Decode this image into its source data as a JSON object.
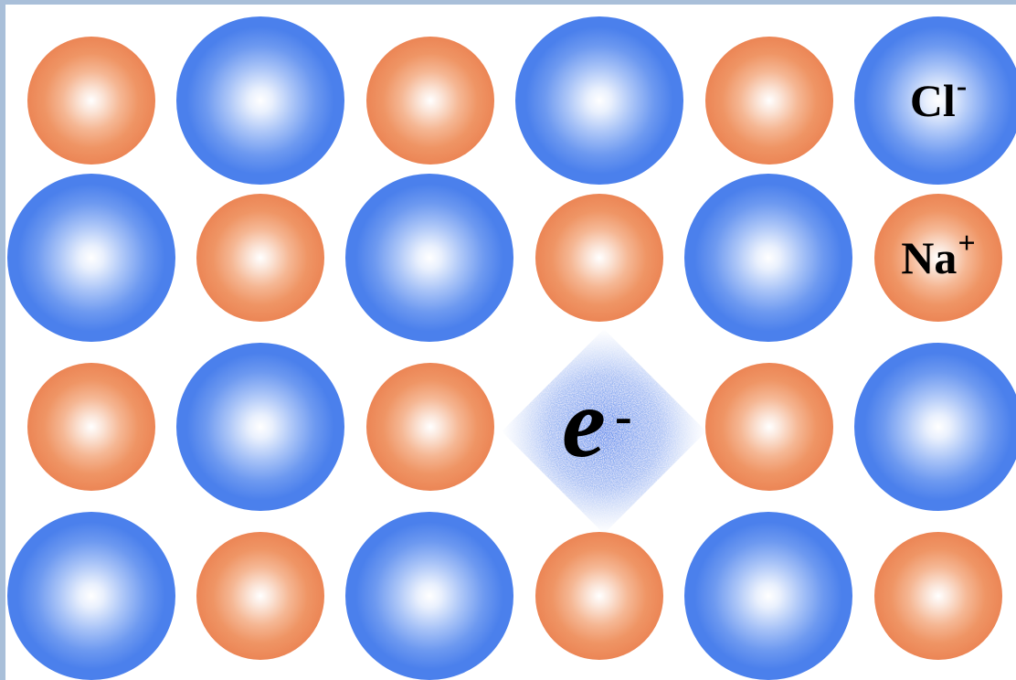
{
  "diagram": {
    "lattice": {
      "rows": [
        [
          "na",
          "cl",
          "na",
          "cl",
          "na",
          "cl"
        ],
        [
          "cl",
          "na",
          "cl",
          "na",
          "cl",
          "na"
        ],
        [
          "na",
          "cl",
          "na",
          "vacancy",
          "na",
          "cl"
        ],
        [
          "cl",
          "na",
          "cl",
          "na",
          "cl",
          "na"
        ]
      ]
    },
    "labels": {
      "chloride": {
        "symbol": "Cl",
        "charge": "-"
      },
      "sodium": {
        "symbol": "Na",
        "charge": "+"
      },
      "electron": {
        "symbol": "e",
        "charge": "-"
      }
    },
    "colors": {
      "chloride": "#4a7eea",
      "sodium": "#ea8352",
      "electron_cloud": "#4a7eea",
      "background": "#ffffff",
      "border": "#a9bfd9"
    }
  }
}
